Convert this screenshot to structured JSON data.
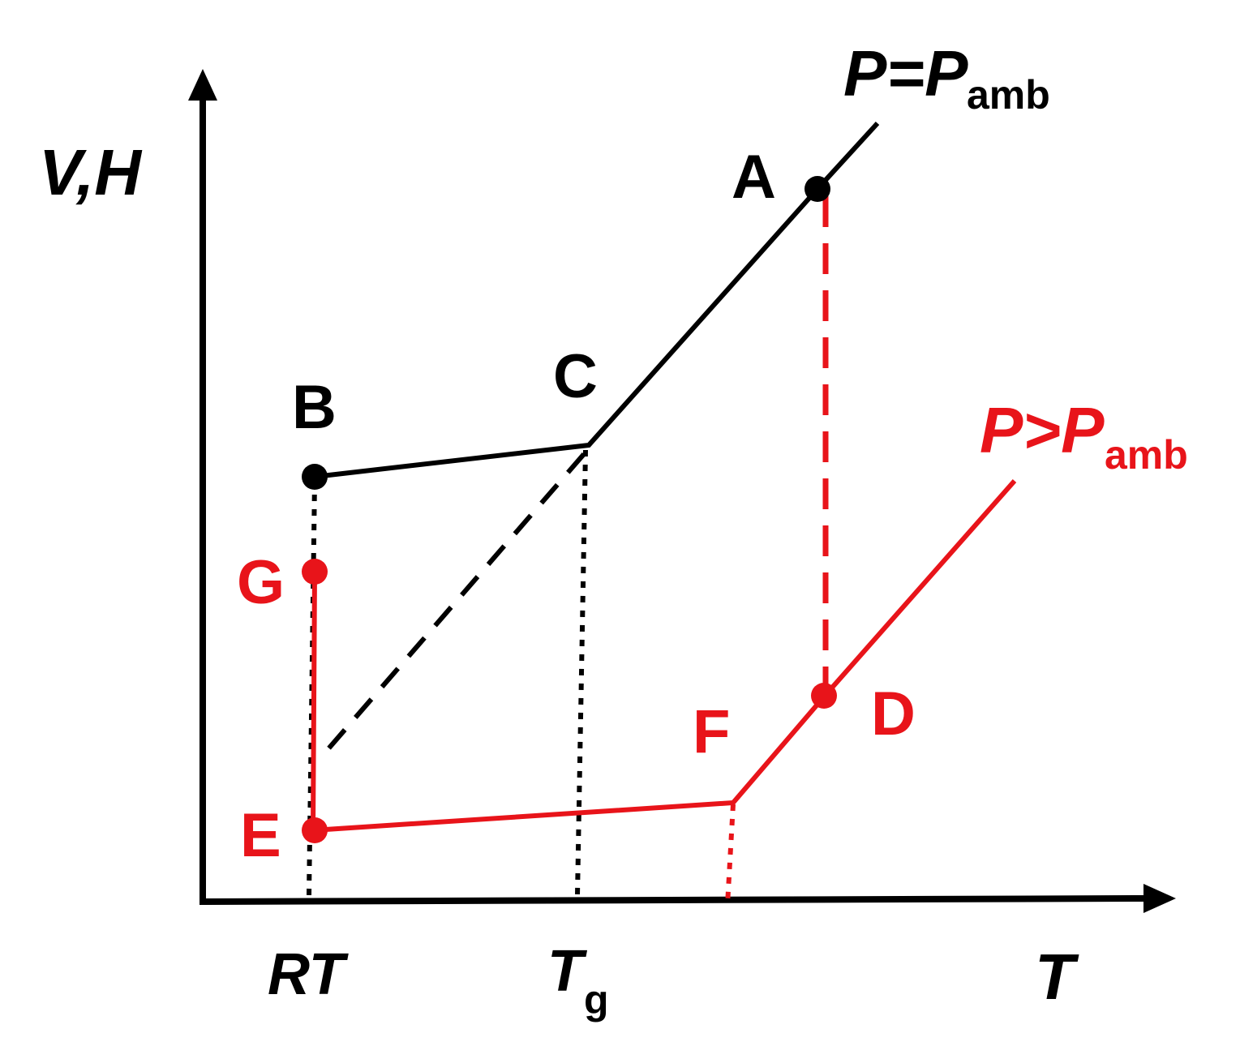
{
  "axes": {
    "y_label": "V,H",
    "x_label": "T",
    "tick_rt": "RT",
    "tick_tg_main": "T",
    "tick_tg_sub": "g"
  },
  "curves": {
    "ambient": {
      "label_main": "P=P",
      "label_sub": "amb",
      "color": "#000000"
    },
    "elevated": {
      "label_main": "P>P",
      "label_sub": "amb",
      "color": "#e8141a"
    }
  },
  "points": {
    "A": "A",
    "B": "B",
    "C": "C",
    "D": "D",
    "E": "E",
    "F": "F",
    "G": "G"
  }
}
